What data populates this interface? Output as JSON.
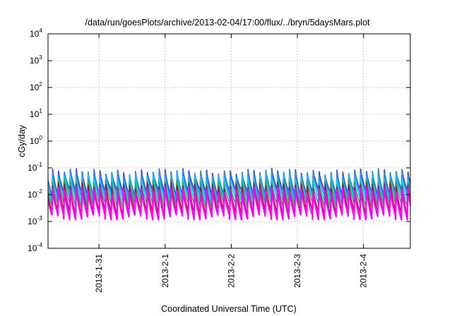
{
  "chart_data": {
    "type": "line",
    "title": "/data/run/goesPlots/archive/2013-02-04/17:00/flux/../bryn/5daysMars.plot",
    "xlabel": "Coordinated Universal Time (UTC)",
    "ylabel": "cGy/day",
    "y_scale": "log",
    "ylim": [
      0.0001,
      10000
    ],
    "y_ticks": [
      {
        "base": "10",
        "exp": "4",
        "value": 10000
      },
      {
        "base": "10",
        "exp": "3",
        "value": 1000
      },
      {
        "base": "10",
        "exp": "2",
        "value": 100
      },
      {
        "base": "10",
        "exp": "1",
        "value": 10
      },
      {
        "base": "10",
        "exp": "0",
        "value": 1
      },
      {
        "base": "10",
        "exp": "-1",
        "value": 0.1
      },
      {
        "base": "10",
        "exp": "-2",
        "value": 0.01
      },
      {
        "base": "10",
        "exp": "-3",
        "value": 0.001
      },
      {
        "base": "10",
        "exp": "-4",
        "value": 0.0001
      }
    ],
    "xlim": [
      "2013-01-30 05:30",
      "2013-02-04 17:00"
    ],
    "x_ticks": [
      {
        "label": "2013-1-31",
        "date": "2013-01-31 00:00"
      },
      {
        "label": "2013-2-1",
        "date": "2013-02-01 00:00"
      },
      {
        "label": "2013-2-2",
        "date": "2013-02-02 00:00"
      },
      {
        "label": "2013-2-3",
        "date": "2013-02-03 00:00"
      },
      {
        "label": "2013-2-4",
        "date": "2013-02-04 00:00"
      }
    ],
    "grid": true,
    "pattern": "sawtooth",
    "cycle_hours": 2.15,
    "series": [
      {
        "color": "#3d3df2",
        "peak": 0.075,
        "trough": 0.012
      },
      {
        "color": "#2a8cf5",
        "peak": 0.065,
        "trough": 0.0085
      },
      {
        "color": "#00d2e6",
        "peak": 0.045,
        "trough": 0.006
      },
      {
        "color": "#2fa84a",
        "peak": 0.03,
        "trough": 0.004
      },
      {
        "color": "#b80a2e",
        "peak": 0.022,
        "trough": 0.0022
      },
      {
        "color": "#ff00ff",
        "peak": 0.015,
        "trough": 0.0015
      }
    ]
  }
}
